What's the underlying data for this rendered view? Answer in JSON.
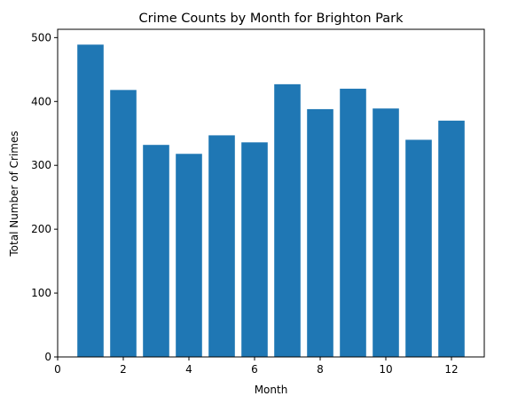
{
  "chart_data": {
    "type": "bar",
    "title": "Crime Counts by Month for Brighton Park",
    "xlabel": "Month",
    "ylabel": "Total Number of Crimes",
    "x": [
      1,
      2,
      3,
      4,
      5,
      6,
      7,
      8,
      9,
      10,
      11,
      12
    ],
    "values": [
      489,
      418,
      332,
      318,
      347,
      336,
      427,
      388,
      420,
      389,
      340,
      370
    ],
    "xlim": [
      0,
      13
    ],
    "ylim": [
      0,
      513
    ],
    "xticks": [
      0,
      2,
      4,
      6,
      8,
      10,
      12
    ],
    "yticks": [
      0,
      100,
      200,
      300,
      400,
      500
    ],
    "bar_color": "#1f77b4",
    "grid": false,
    "legend": null
  }
}
